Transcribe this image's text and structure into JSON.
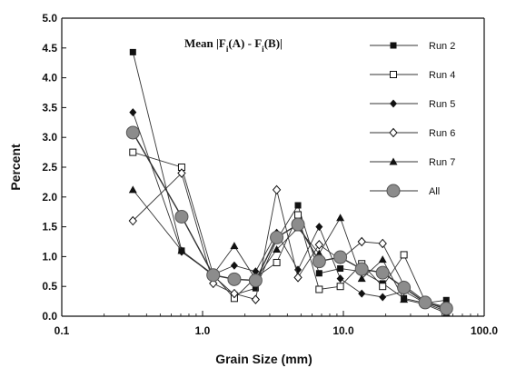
{
  "chart_data": {
    "type": "line",
    "title": "",
    "annotation": "Mean |F_i(A) - F_i(B)|",
    "xlabel": "Grain Size (mm)",
    "ylabel": "Percent",
    "x_scale": "log",
    "xlim": [
      0.1,
      100.0
    ],
    "ylim": [
      0.0,
      5.0
    ],
    "x_tick_labels": [
      "0.1",
      "1.0",
      "10.0",
      "100.0"
    ],
    "y_tick_labels": [
      "0.0",
      "0.5",
      "1.0",
      "1.5",
      "2.0",
      "2.5",
      "3.0",
      "3.5",
      "4.0",
      "4.5",
      "5.0"
    ],
    "grid": false,
    "legend_position": "top-right",
    "x": [
      0.32,
      0.71,
      1.19,
      1.68,
      2.38,
      3.36,
      4.76,
      6.73,
      9.51,
      13.5,
      19.0,
      26.9,
      38.1,
      53.8
    ],
    "series": [
      {
        "name": "Run 2",
        "marker": "filled-square",
        "values": [
          4.43,
          1.1,
          0.68,
          0.36,
          0.47,
          1.28,
          1.86,
          0.72,
          0.8,
          0.75,
          0.55,
          0.3,
          0.22,
          0.27
        ]
      },
      {
        "name": "Run 4",
        "marker": "open-square",
        "values": [
          2.75,
          2.5,
          0.7,
          0.3,
          0.65,
          0.9,
          1.7,
          0.45,
          0.5,
          0.88,
          0.5,
          1.03,
          0.25,
          0.15
        ]
      },
      {
        "name": "Run 5",
        "marker": "filled-diamond",
        "values": [
          3.42,
          1.08,
          0.7,
          0.85,
          0.75,
          1.4,
          0.78,
          1.5,
          0.63,
          0.38,
          0.32,
          0.42,
          0.22,
          0.08
        ]
      },
      {
        "name": "Run 6",
        "marker": "open-diamond",
        "values": [
          1.6,
          2.4,
          0.55,
          0.38,
          0.28,
          2.12,
          0.65,
          1.2,
          0.95,
          1.25,
          1.22,
          0.52,
          0.25,
          0.1
        ]
      },
      {
        "name": "Run 7",
        "marker": "filled-triangle",
        "values": [
          2.12,
          1.1,
          0.7,
          1.18,
          0.62,
          1.12,
          1.48,
          1.05,
          1.65,
          0.63,
          0.95,
          0.28,
          0.2,
          0.05
        ]
      },
      {
        "name": "All",
        "marker": "large-gray-circle",
        "values": [
          3.08,
          1.67,
          0.69,
          0.62,
          0.6,
          1.32,
          1.54,
          0.92,
          0.99,
          0.79,
          0.73,
          0.48,
          0.23,
          0.13
        ]
      }
    ],
    "colors": {
      "line": "#333333",
      "marker_fill": "#111111",
      "all_fill": "#8c8c8c"
    }
  }
}
